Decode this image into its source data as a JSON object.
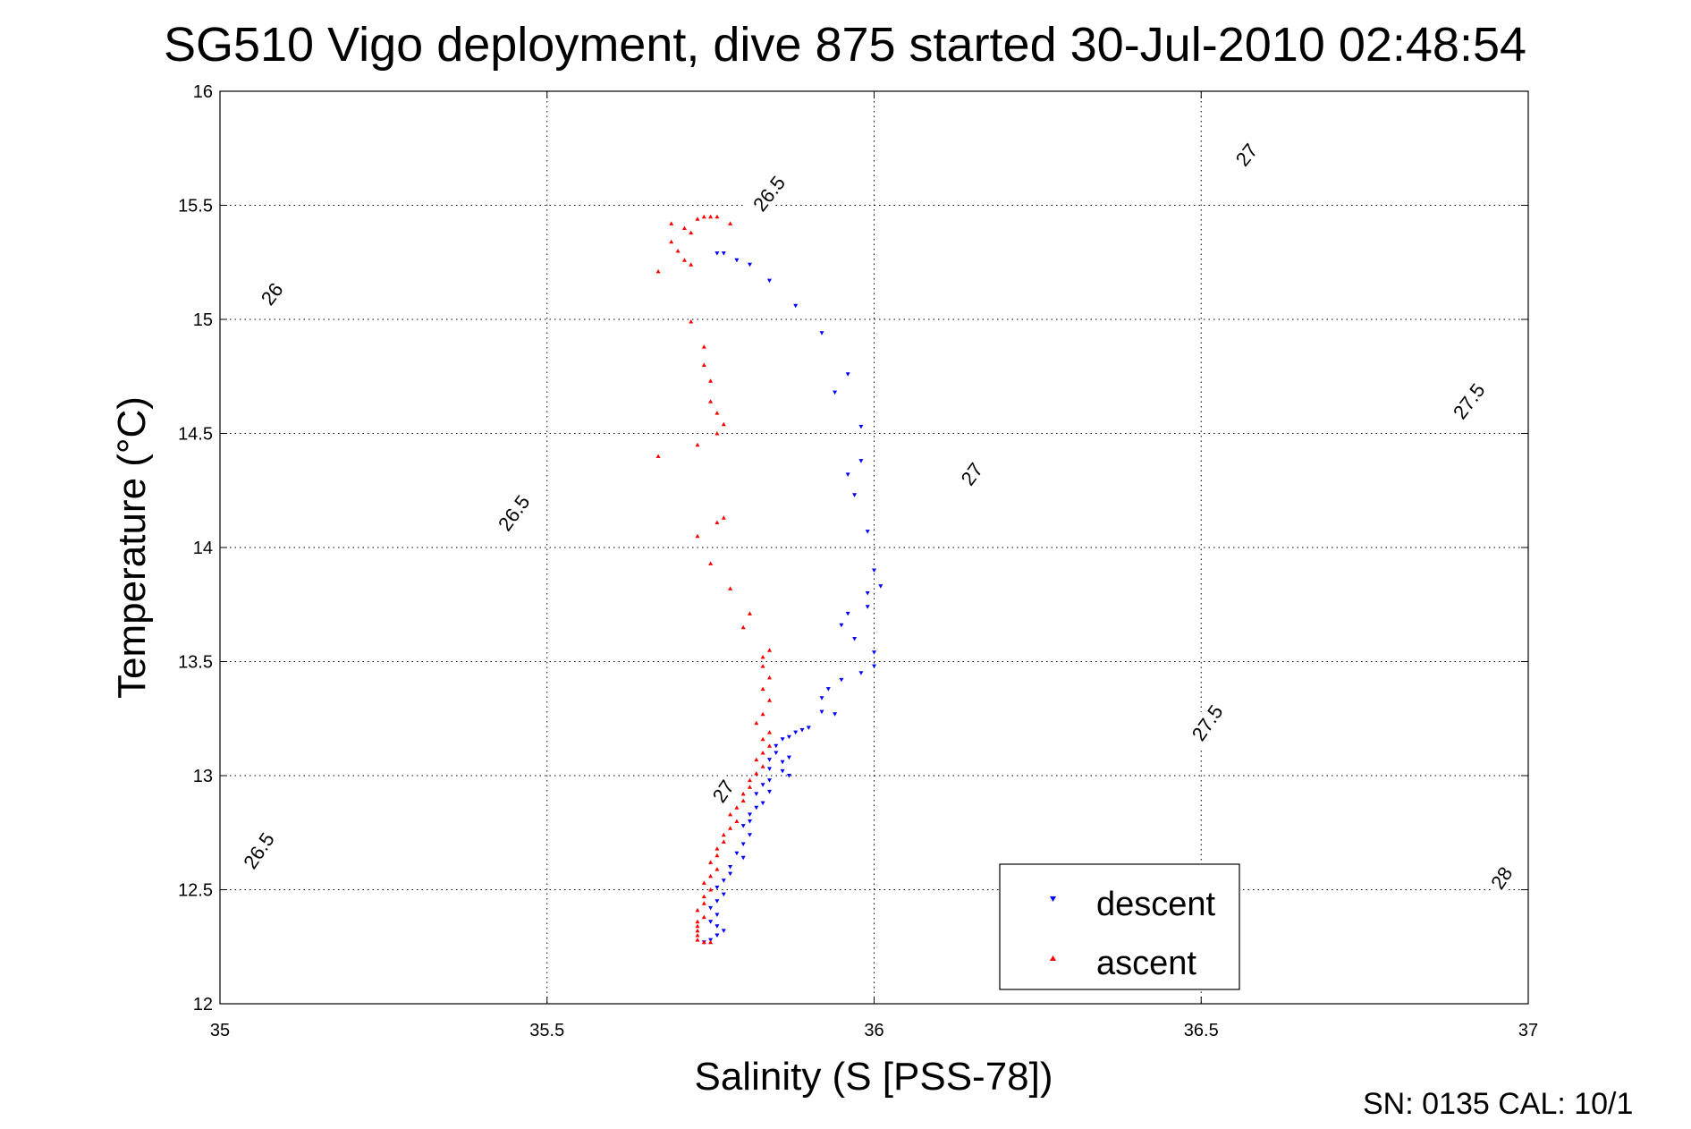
{
  "chart_data": {
    "type": "scatter",
    "title": "SG510 Vigo deployment, dive 875 started 30-Jul-2010 02:48:54",
    "xlabel": "Salinity (S [PSS-78])",
    "ylabel": "Temperature (°C)",
    "xlim": [
      35,
      37
    ],
    "ylim": [
      12,
      16
    ],
    "xticks": [
      "35",
      "35.5",
      "36",
      "36.5",
      "37"
    ],
    "yticks": [
      "12",
      "12.5",
      "13",
      "13.5",
      "14",
      "14.5",
      "15",
      "15.5",
      "16"
    ],
    "grid": true,
    "legend_position": "bottom-right",
    "isopycnals": {
      "levels": [
        "26",
        "26.5",
        "27",
        "27.5",
        "28"
      ],
      "lines": [
        {
          "level": "26",
          "labels": [
            {
              "text": "26",
              "s": 35.08,
              "t": 15.11
            }
          ]
        },
        {
          "level": "26.5",
          "labels": [
            {
              "text": "26.5",
              "s": 35.06,
              "t": 12.67
            },
            {
              "text": "26.5",
              "s": 35.45,
              "t": 14.15
            },
            {
              "text": "26.5",
              "s": 35.84,
              "t": 15.55
            }
          ]
        },
        {
          "level": "27",
          "labels": [
            {
              "text": "27",
              "s": 35.77,
              "t": 12.93
            },
            {
              "text": "27",
              "s": 36.15,
              "t": 14.32
            },
            {
              "text": "27",
              "s": 36.57,
              "t": 15.72
            }
          ]
        },
        {
          "level": "27.5",
          "labels": [
            {
              "text": "27.5",
              "s": 36.51,
              "t": 13.23
            },
            {
              "text": "27.5",
              "s": 36.91,
              "t": 14.64
            }
          ]
        },
        {
          "level": "28",
          "labels": [
            {
              "text": "28",
              "s": 36.96,
              "t": 12.55
            }
          ]
        }
      ]
    },
    "series": [
      {
        "name": "descent",
        "color": "#0000ff",
        "marker": "triangle-down",
        "points": [
          [
            35.76,
            15.29
          ],
          [
            35.77,
            15.29
          ],
          [
            35.79,
            15.26
          ],
          [
            35.81,
            15.24
          ],
          [
            35.84,
            15.17
          ],
          [
            35.88,
            15.06
          ],
          [
            35.92,
            14.94
          ],
          [
            35.96,
            14.76
          ],
          [
            35.94,
            14.68
          ],
          [
            35.98,
            14.53
          ],
          [
            35.98,
            14.38
          ],
          [
            35.96,
            14.32
          ],
          [
            35.97,
            14.23
          ],
          [
            35.99,
            14.07
          ],
          [
            36.0,
            13.9
          ],
          [
            36.01,
            13.83
          ],
          [
            35.99,
            13.8
          ],
          [
            35.99,
            13.74
          ],
          [
            35.96,
            13.71
          ],
          [
            35.95,
            13.66
          ],
          [
            35.97,
            13.6
          ],
          [
            36.0,
            13.54
          ],
          [
            36.0,
            13.48
          ],
          [
            35.98,
            13.45
          ],
          [
            35.95,
            13.42
          ],
          [
            35.93,
            13.38
          ],
          [
            35.92,
            13.34
          ],
          [
            35.92,
            13.28
          ],
          [
            35.94,
            13.27
          ],
          [
            35.9,
            13.21
          ],
          [
            35.89,
            13.2
          ],
          [
            35.88,
            13.19
          ],
          [
            35.87,
            13.17
          ],
          [
            35.86,
            13.16
          ],
          [
            35.85,
            13.13
          ],
          [
            35.85,
            13.1
          ],
          [
            35.84,
            13.07
          ],
          [
            35.87,
            13.08
          ],
          [
            35.86,
            13.06
          ],
          [
            35.84,
            13.03
          ],
          [
            35.86,
            13.02
          ],
          [
            35.87,
            13.0
          ],
          [
            35.84,
            12.98
          ],
          [
            35.83,
            12.96
          ],
          [
            35.84,
            12.93
          ],
          [
            35.82,
            12.92
          ],
          [
            35.83,
            12.88
          ],
          [
            35.82,
            12.86
          ],
          [
            35.81,
            12.83
          ],
          [
            35.81,
            12.8
          ],
          [
            35.8,
            12.78
          ],
          [
            35.81,
            12.74
          ],
          [
            35.8,
            12.7
          ],
          [
            35.79,
            12.66
          ],
          [
            35.8,
            12.64
          ],
          [
            35.78,
            12.6
          ],
          [
            35.78,
            12.57
          ],
          [
            35.77,
            12.54
          ],
          [
            35.76,
            12.51
          ],
          [
            35.77,
            12.48
          ],
          [
            35.76,
            12.45
          ],
          [
            35.75,
            12.42
          ],
          [
            35.76,
            12.39
          ],
          [
            35.75,
            12.36
          ],
          [
            35.76,
            12.34
          ],
          [
            35.77,
            12.32
          ],
          [
            35.76,
            12.3
          ],
          [
            35.75,
            12.28
          ],
          [
            35.74,
            12.27
          ]
        ]
      },
      {
        "name": "ascent",
        "color": "#ff0000",
        "marker": "triangle-up",
        "points": [
          [
            35.74,
            15.45
          ],
          [
            35.75,
            15.45
          ],
          [
            35.76,
            15.45
          ],
          [
            35.73,
            15.44
          ],
          [
            35.78,
            15.42
          ],
          [
            35.69,
            15.42
          ],
          [
            35.71,
            15.4
          ],
          [
            35.72,
            15.38
          ],
          [
            35.69,
            15.34
          ],
          [
            35.7,
            15.3
          ],
          [
            35.71,
            15.26
          ],
          [
            35.72,
            15.24
          ],
          [
            35.67,
            15.21
          ],
          [
            35.72,
            14.99
          ],
          [
            35.74,
            14.88
          ],
          [
            35.74,
            14.8
          ],
          [
            35.75,
            14.73
          ],
          [
            35.75,
            14.64
          ],
          [
            35.76,
            14.59
          ],
          [
            35.77,
            14.54
          ],
          [
            35.76,
            14.5
          ],
          [
            35.73,
            14.45
          ],
          [
            35.67,
            14.4
          ],
          [
            35.77,
            14.13
          ],
          [
            35.76,
            14.11
          ],
          [
            35.73,
            14.05
          ],
          [
            35.75,
            13.93
          ],
          [
            35.78,
            13.82
          ],
          [
            35.81,
            13.71
          ],
          [
            35.8,
            13.65
          ],
          [
            35.84,
            13.55
          ],
          [
            35.83,
            13.52
          ],
          [
            35.83,
            13.48
          ],
          [
            35.84,
            13.43
          ],
          [
            35.83,
            13.38
          ],
          [
            35.84,
            13.33
          ],
          [
            35.83,
            13.27
          ],
          [
            35.82,
            13.23
          ],
          [
            35.84,
            13.19
          ],
          [
            35.83,
            13.16
          ],
          [
            35.84,
            13.13
          ],
          [
            35.83,
            13.1
          ],
          [
            35.82,
            13.07
          ],
          [
            35.83,
            13.04
          ],
          [
            35.82,
            13.01
          ],
          [
            35.81,
            12.98
          ],
          [
            35.81,
            12.95
          ],
          [
            35.8,
            12.92
          ],
          [
            35.8,
            12.89
          ],
          [
            35.79,
            12.86
          ],
          [
            35.78,
            12.83
          ],
          [
            35.79,
            12.8
          ],
          [
            35.78,
            12.77
          ],
          [
            35.77,
            12.74
          ],
          [
            35.77,
            12.71
          ],
          [
            35.76,
            12.68
          ],
          [
            35.76,
            12.65
          ],
          [
            35.75,
            12.62
          ],
          [
            35.76,
            12.59
          ],
          [
            35.75,
            12.56
          ],
          [
            35.74,
            12.53
          ],
          [
            35.75,
            12.5
          ],
          [
            35.74,
            12.47
          ],
          [
            35.74,
            12.44
          ],
          [
            35.73,
            12.41
          ],
          [
            35.74,
            12.38
          ],
          [
            35.73,
            12.36
          ],
          [
            35.73,
            12.34
          ],
          [
            35.73,
            12.32
          ],
          [
            35.73,
            12.3
          ],
          [
            35.73,
            12.28
          ],
          [
            35.74,
            12.27
          ],
          [
            35.75,
            12.27
          ]
        ]
      }
    ],
    "footer": "SN: 0135  CAL: 10/1"
  }
}
